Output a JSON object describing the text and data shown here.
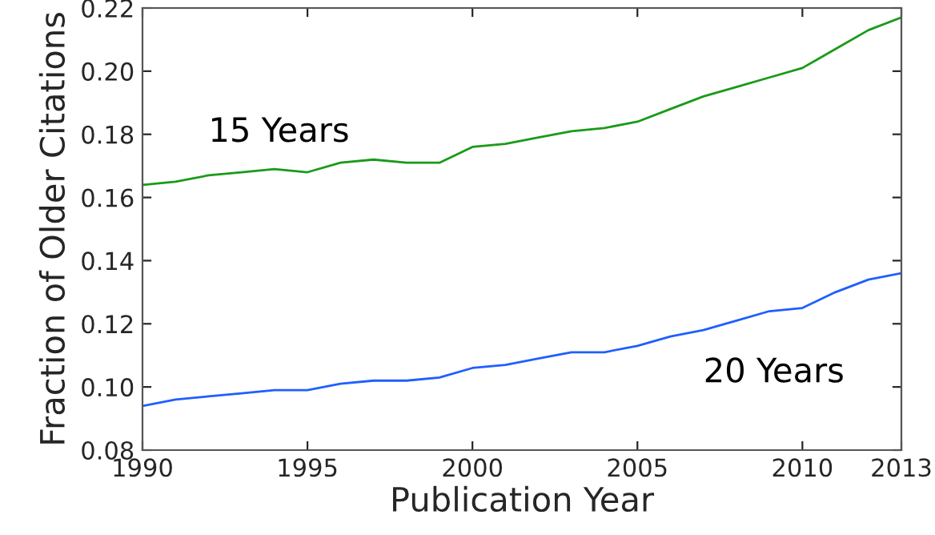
{
  "chart_data": {
    "type": "line",
    "xlabel": "Publication Year",
    "ylabel": "Fraction of Older Citations",
    "x": [
      1990,
      1991,
      1992,
      1993,
      1994,
      1995,
      1996,
      1997,
      1998,
      1999,
      2000,
      2001,
      2002,
      2003,
      2004,
      2005,
      2006,
      2007,
      2008,
      2009,
      2010,
      2011,
      2012,
      2013
    ],
    "series": [
      {
        "name": "15 Years",
        "color": "#1a9a1a",
        "values": [
          0.164,
          0.165,
          0.167,
          0.168,
          0.169,
          0.168,
          0.171,
          0.172,
          0.171,
          0.171,
          0.176,
          0.177,
          0.179,
          0.181,
          0.182,
          0.184,
          0.188,
          0.192,
          0.195,
          0.198,
          0.201,
          0.207,
          0.213,
          0.217
        ]
      },
      {
        "name": "20 Years",
        "color": "#1f5fff",
        "values": [
          0.094,
          0.096,
          0.097,
          0.098,
          0.099,
          0.099,
          0.101,
          0.102,
          0.102,
          0.103,
          0.106,
          0.107,
          0.109,
          0.111,
          0.111,
          0.113,
          0.116,
          0.118,
          0.121,
          0.124,
          0.125,
          0.13,
          0.134,
          0.136
        ]
      }
    ],
    "xlim": [
      1990,
      2013
    ],
    "xticks": [
      1990,
      1995,
      2000,
      2005,
      2010,
      2013
    ],
    "ylim": [
      0.08,
      0.22
    ],
    "yticks": [
      {
        "value": 0.08,
        "label": "0.08"
      },
      {
        "value": 0.1,
        "label": "0.10"
      },
      {
        "value": 0.12,
        "label": "0.12"
      },
      {
        "value": 0.14,
        "label": "0.14"
      },
      {
        "value": 0.16,
        "label": "0.16"
      },
      {
        "value": 0.18,
        "label": "0.18"
      },
      {
        "value": 0.2,
        "label": "0.20"
      },
      {
        "value": 0.22,
        "label": "0.22"
      }
    ],
    "grid": false,
    "legend": false,
    "marker": "none",
    "line_style": "solid"
  }
}
